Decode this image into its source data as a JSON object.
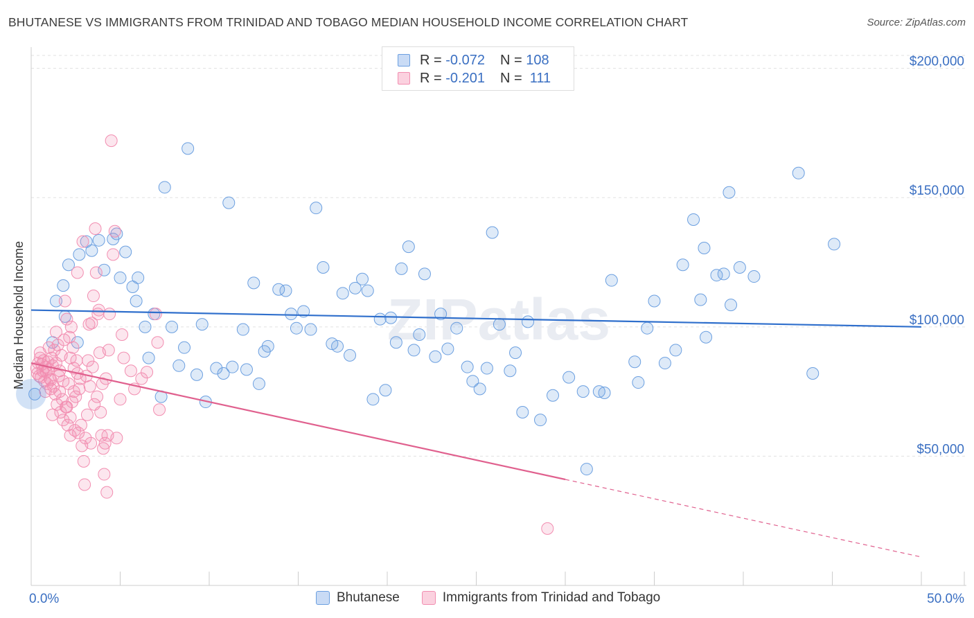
{
  "header": {
    "title": "BHUTANESE VS IMMIGRANTS FROM TRINIDAD AND TOBAGO MEDIAN HOUSEHOLD INCOME CORRELATION CHART",
    "source": "Source: ZipAtlas.com"
  },
  "watermark": "ZIPatlas",
  "legend_top": {
    "rows": [
      {
        "r_label": "R =",
        "r_value": "-0.072",
        "n_label": "N =",
        "n_value": "108"
      },
      {
        "r_label": "R =",
        "r_value": "-0.201",
        "n_label": "N =",
        "n_value": "111"
      }
    ]
  },
  "colors": {
    "blue": "#6b9fe0",
    "blue_line": "#2f6fcc",
    "pink": "#f28db0",
    "pink_line": "#e0608e",
    "axis_label": "#3a6fc2"
  },
  "chart_data": {
    "type": "scatter",
    "title": "BHUTANESE VS IMMIGRANTS FROM TRINIDAD AND TOBAGO MEDIAN HOUSEHOLD INCOME CORRELATION CHART",
    "xlabel": "",
    "ylabel": "Median Household Income",
    "xlim": [
      0,
      50
    ],
    "ylim": [
      0,
      205000
    ],
    "x_tick_labels": [
      "0.0%",
      "50.0%"
    ],
    "y_ticks": [
      50000,
      100000,
      150000,
      200000
    ],
    "y_tick_labels": [
      "$50,000",
      "$100,000",
      "$150,000",
      "$200,000"
    ],
    "grid": true,
    "legend_position": "bottom",
    "series": [
      {
        "name": "Bhutanese",
        "color": "#6b9fe0",
        "trend": {
          "x": [
            0,
            50
          ],
          "y": [
            106500,
            100000
          ]
        },
        "points": [
          [
            0.2,
            74000
          ],
          [
            1.2,
            94000
          ],
          [
            1.4,
            110000
          ],
          [
            1.8,
            116000
          ],
          [
            2.1,
            124000
          ],
          [
            2.7,
            128000
          ],
          [
            3.1,
            133000
          ],
          [
            3.4,
            129500
          ],
          [
            3.8,
            133500
          ],
          [
            4.1,
            122000
          ],
          [
            4.6,
            134000
          ],
          [
            4.8,
            136000
          ],
          [
            5.0,
            119000
          ],
          [
            5.3,
            129000
          ],
          [
            5.7,
            115500
          ],
          [
            6.0,
            119000
          ],
          [
            6.4,
            100000
          ],
          [
            6.6,
            88000
          ],
          [
            6.9,
            105000
          ],
          [
            7.3,
            73000
          ],
          [
            7.5,
            154000
          ],
          [
            7.9,
            100000
          ],
          [
            8.3,
            85000
          ],
          [
            8.6,
            92000
          ],
          [
            8.8,
            169000
          ],
          [
            9.3,
            81500
          ],
          [
            9.6,
            101000
          ],
          [
            9.8,
            71000
          ],
          [
            10.4,
            84000
          ],
          [
            10.8,
            82000
          ],
          [
            11.1,
            148000
          ],
          [
            11.3,
            84500
          ],
          [
            11.9,
            99000
          ],
          [
            12.1,
            83500
          ],
          [
            12.5,
            117000
          ],
          [
            12.8,
            78000
          ],
          [
            13.1,
            90500
          ],
          [
            13.3,
            92500
          ],
          [
            13.9,
            114500
          ],
          [
            14.3,
            114000
          ],
          [
            14.6,
            105000
          ],
          [
            14.9,
            99500
          ],
          [
            15.3,
            106000
          ],
          [
            15.7,
            99000
          ],
          [
            16.0,
            146000
          ],
          [
            16.4,
            123000
          ],
          [
            16.9,
            93500
          ],
          [
            17.2,
            92500
          ],
          [
            17.5,
            113000
          ],
          [
            17.9,
            89000
          ],
          [
            18.2,
            115000
          ],
          [
            18.6,
            118500
          ],
          [
            18.9,
            114000
          ],
          [
            19.2,
            72000
          ],
          [
            19.6,
            103000
          ],
          [
            19.9,
            75500
          ],
          [
            20.2,
            103500
          ],
          [
            20.5,
            94000
          ],
          [
            20.8,
            122500
          ],
          [
            21.2,
            131000
          ],
          [
            21.5,
            91000
          ],
          [
            21.8,
            97000
          ],
          [
            22.1,
            120500
          ],
          [
            22.7,
            88500
          ],
          [
            23.0,
            105000
          ],
          [
            23.4,
            91500
          ],
          [
            23.9,
            99500
          ],
          [
            24.5,
            84500
          ],
          [
            24.8,
            79000
          ],
          [
            25.2,
            76000
          ],
          [
            25.6,
            84000
          ],
          [
            25.9,
            136500
          ],
          [
            26.3,
            101000
          ],
          [
            26.9,
            83000
          ],
          [
            27.2,
            90000
          ],
          [
            27.6,
            67000
          ],
          [
            27.9,
            102000
          ],
          [
            28.6,
            64000
          ],
          [
            29.3,
            73500
          ],
          [
            30.2,
            80500
          ],
          [
            31.0,
            75000
          ],
          [
            31.2,
            45000
          ],
          [
            31.9,
            75000
          ],
          [
            32.2,
            74500
          ],
          [
            32.6,
            118000
          ],
          [
            33.9,
            86500
          ],
          [
            34.1,
            78500
          ],
          [
            34.6,
            99500
          ],
          [
            35.0,
            110000
          ],
          [
            35.6,
            86000
          ],
          [
            36.2,
            91000
          ],
          [
            36.6,
            124000
          ],
          [
            37.2,
            141500
          ],
          [
            37.9,
            96000
          ],
          [
            37.8,
            130500
          ],
          [
            37.6,
            110500
          ],
          [
            38.5,
            120000
          ],
          [
            38.9,
            120500
          ],
          [
            39.3,
            108500
          ],
          [
            39.2,
            152000
          ],
          [
            39.8,
            123000
          ],
          [
            40.6,
            119500
          ],
          [
            43.1,
            159500
          ],
          [
            43.9,
            82000
          ],
          [
            45.1,
            132000
          ],
          [
            2.6,
            94000
          ],
          [
            5.9,
            110000
          ],
          [
            1.9,
            104000
          ]
        ]
      },
      {
        "name": "Immigrants from Trinidad and Tobago",
        "color": "#f28db0",
        "trend": {
          "x": [
            0,
            30
          ],
          "y": [
            86000,
            41000
          ]
        },
        "trend_dashed": {
          "x": [
            30,
            50
          ],
          "y": [
            41000,
            11000
          ]
        },
        "points": [
          [
            0.3,
            84000
          ],
          [
            0.35,
            82000
          ],
          [
            0.4,
            86000
          ],
          [
            0.45,
            81000
          ],
          [
            0.5,
            88000
          ],
          [
            0.55,
            80500
          ],
          [
            0.6,
            85500
          ],
          [
            0.65,
            83000
          ],
          [
            0.7,
            87000
          ],
          [
            0.75,
            79000
          ],
          [
            0.8,
            84500
          ],
          [
            0.85,
            82500
          ],
          [
            0.9,
            78000
          ],
          [
            0.95,
            86500
          ],
          [
            1.0,
            83500
          ],
          [
            1.05,
            80000
          ],
          [
            1.1,
            76000
          ],
          [
            1.15,
            88000
          ],
          [
            1.2,
            85000
          ],
          [
            1.25,
            77000
          ],
          [
            1.3,
            91000
          ],
          [
            1.35,
            74000
          ],
          [
            1.4,
            98000
          ],
          [
            1.45,
            70000
          ],
          [
            1.5,
            93000
          ],
          [
            1.55,
            81000
          ],
          [
            1.6,
            75000
          ],
          [
            1.65,
            67000
          ],
          [
            1.7,
            89000
          ],
          [
            1.75,
            72000
          ],
          [
            1.8,
            64000
          ],
          [
            1.85,
            95000
          ],
          [
            1.9,
            110000
          ],
          [
            1.95,
            69000
          ],
          [
            2.0,
            103000
          ],
          [
            2.05,
            62000
          ],
          [
            2.1,
            78000
          ],
          [
            2.15,
            96000
          ],
          [
            2.2,
            65000
          ],
          [
            2.25,
            100000
          ],
          [
            2.3,
            71000
          ],
          [
            2.35,
            92000
          ],
          [
            2.4,
            84000
          ],
          [
            2.45,
            60000
          ],
          [
            2.5,
            73000
          ],
          [
            2.55,
            87000
          ],
          [
            2.6,
            121000
          ],
          [
            2.65,
            59000
          ],
          [
            2.7,
            76000
          ],
          [
            2.75,
            80000
          ],
          [
            2.8,
            62000
          ],
          [
            2.85,
            54000
          ],
          [
            2.9,
            133000
          ],
          [
            2.95,
            48000
          ],
          [
            3.0,
            39000
          ],
          [
            3.05,
            57000
          ],
          [
            3.1,
            81000
          ],
          [
            3.15,
            66000
          ],
          [
            3.2,
            87000
          ],
          [
            3.25,
            101000
          ],
          [
            3.3,
            77000
          ],
          [
            3.35,
            55000
          ],
          [
            3.4,
            101500
          ],
          [
            3.45,
            84500
          ],
          [
            3.5,
            112000
          ],
          [
            3.55,
            70000
          ],
          [
            3.6,
            138000
          ],
          [
            3.65,
            121000
          ],
          [
            3.7,
            73000
          ],
          [
            3.75,
            105000
          ],
          [
            3.8,
            106500
          ],
          [
            3.85,
            90000
          ],
          [
            3.9,
            67000
          ],
          [
            3.95,
            58000
          ],
          [
            4.0,
            78000
          ],
          [
            4.05,
            53000
          ],
          [
            4.1,
            43000
          ],
          [
            4.15,
            55000
          ],
          [
            4.2,
            80000
          ],
          [
            4.25,
            36000
          ],
          [
            4.3,
            58000
          ],
          [
            4.35,
            91000
          ],
          [
            4.4,
            105000
          ],
          [
            4.5,
            172000
          ],
          [
            4.6,
            128000
          ],
          [
            4.7,
            137000
          ],
          [
            4.8,
            57000
          ],
          [
            5.0,
            72000
          ],
          [
            5.1,
            97000
          ],
          [
            5.2,
            88000
          ],
          [
            5.6,
            83000
          ],
          [
            5.8,
            76000
          ],
          [
            6.2,
            80000
          ],
          [
            6.5,
            82500
          ],
          [
            7.0,
            105000
          ],
          [
            7.1,
            94000
          ],
          [
            7.2,
            68000
          ],
          [
            0.5,
            90000
          ],
          [
            0.8,
            75000
          ],
          [
            1.0,
            92000
          ],
          [
            1.2,
            66000
          ],
          [
            1.4,
            86000
          ],
          [
            1.6,
            83000
          ],
          [
            1.8,
            79000
          ],
          [
            2.0,
            69000
          ],
          [
            2.2,
            58000
          ],
          [
            2.4,
            75000
          ],
          [
            2.6,
            82000
          ],
          [
            29.0,
            22000
          ],
          [
            1.1,
            79500
          ],
          [
            2.2,
            88000
          ]
        ]
      }
    ]
  },
  "bottom_legend": [
    {
      "label": "Bhutanese"
    },
    {
      "label": "Immigrants from Trinidad and Tobago"
    }
  ]
}
